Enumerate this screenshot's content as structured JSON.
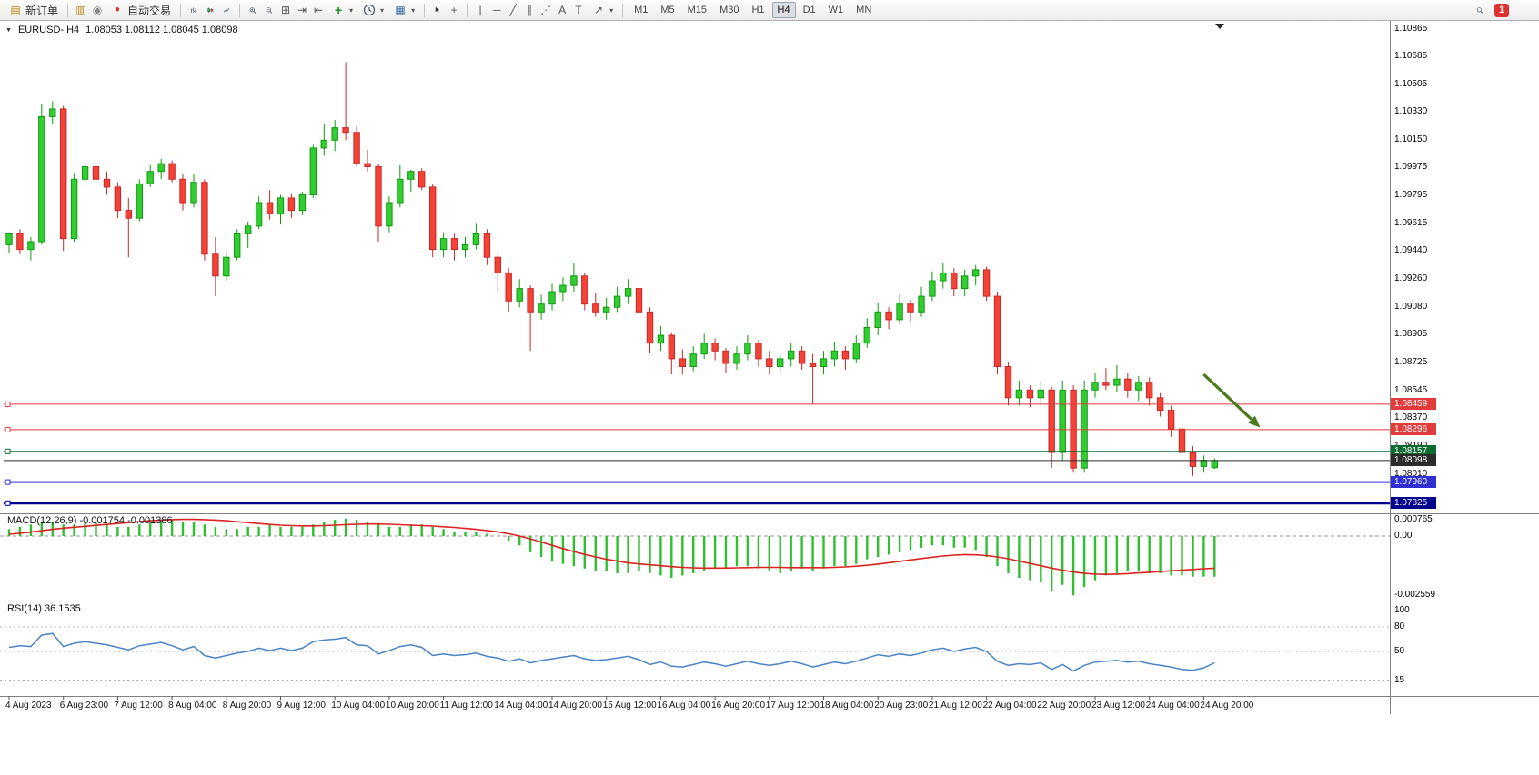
{
  "toolbar": {
    "new_order_label": "新订单",
    "auto_trading_label": "自动交易",
    "timeframes": [
      "M1",
      "M5",
      "M15",
      "M30",
      "H1",
      "H4",
      "D1",
      "W1",
      "MN"
    ],
    "active_timeframe": "H4",
    "notification_count": "1",
    "icons": {
      "caret": "▾",
      "new_order": "▤",
      "market_watch": "▥",
      "navigator": "◉",
      "auto_trading_dot": "●",
      "tile_windows": "⊞",
      "auto_scroll": "⇥",
      "chart_shift": "⇤",
      "indicators_plus": "+",
      "templates": "▦",
      "crosshair": "+",
      "vertical_line": "|",
      "horizontal_line": "─",
      "trendline": "╱",
      "channel": "∥",
      "fibonacci": "⋰",
      "text": "A",
      "text_label": "T",
      "arrows": "↗"
    }
  },
  "chart": {
    "header": {
      "collapse_marker": "▼",
      "symbol_label": "EURUSD-,H4",
      "ohlc_label": "1.08053 1.08112 1.08045 1.08098"
    }
  },
  "chart_data": {
    "type": "candlestick",
    "symbol": "EURUSD",
    "timeframe": "H4",
    "price_range": {
      "max": 1.1092,
      "min": 1.0776
    },
    "price_axis_labels": [
      "1.10865",
      "1.10685",
      "1.10505",
      "1.10330",
      "1.10150",
      "1.09975",
      "1.09795",
      "1.09615",
      "1.09440",
      "1.09260",
      "1.09080",
      "1.08905",
      "1.08725",
      "1.08545",
      "1.08370",
      "1.08190",
      "1.08010"
    ],
    "time_labels": [
      "4 Aug 2023",
      "6 Aug 23:00",
      "7 Aug 12:00",
      "8 Aug 04:00",
      "8 Aug 20:00",
      "9 Aug 12:00",
      "10 Aug 04:00",
      "10 Aug 20:00",
      "11 Aug 12:00",
      "14 Aug 04:00",
      "14 Aug 20:00",
      "15 Aug 12:00",
      "16 Aug 04:00",
      "16 Aug 20:00",
      "17 Aug 12:00",
      "18 Aug 04:00",
      "20 Aug 23:00",
      "21 Aug 12:00",
      "22 Aug 04:00",
      "22 Aug 20:00",
      "23 Aug 12:00",
      "24 Aug 04:00",
      "24 Aug 20:00"
    ],
    "colors": {
      "up": "#33cc33",
      "up_border": "#0e9c0e",
      "down": "#f44336",
      "down_border": "#c62828",
      "macd_hist": "#2fbf2f",
      "macd_signal": "#dd2222",
      "rsi_line": "#4a84c4",
      "arrow": "#4e7a1f"
    },
    "candles": [
      [
        1.0948,
        1.0956,
        1.0943,
        1.0955
      ],
      [
        1.0955,
        1.0958,
        1.0942,
        1.0945
      ],
      [
        1.0945,
        1.0953,
        1.0938,
        1.095
      ],
      [
        1.095,
        1.1038,
        1.0948,
        1.103
      ],
      [
        1.103,
        1.104,
        1.1025,
        1.1035
      ],
      [
        1.1035,
        1.1037,
        1.0944,
        1.0952
      ],
      [
        1.0952,
        1.0994,
        1.095,
        1.099
      ],
      [
        1.099,
        1.1001,
        1.0985,
        1.0998
      ],
      [
        1.0998,
        1.1,
        1.0988,
        1.099
      ],
      [
        1.099,
        1.0995,
        1.098,
        1.0985
      ],
      [
        1.0985,
        1.0988,
        1.0965,
        1.097
      ],
      [
        1.097,
        1.0978,
        1.094,
        1.0965
      ],
      [
        1.0965,
        1.099,
        1.0963,
        1.0987
      ],
      [
        1.0987,
        1.0999,
        1.0985,
        1.0995
      ],
      [
        1.0995,
        1.1003,
        1.099,
        1.1
      ],
      [
        1.1,
        1.1002,
        1.0988,
        1.099
      ],
      [
        1.099,
        1.0993,
        1.097,
        1.0975
      ],
      [
        1.0975,
        1.0993,
        1.0972,
        1.0988
      ],
      [
        1.0988,
        1.099,
        1.0938,
        1.0942
      ],
      [
        1.0942,
        1.0953,
        1.0915,
        1.0928
      ],
      [
        1.0928,
        1.0944,
        1.0925,
        1.094
      ],
      [
        1.094,
        1.0958,
        1.0938,
        1.0955
      ],
      [
        1.0955,
        1.0963,
        1.0946,
        1.096
      ],
      [
        1.096,
        1.0979,
        1.0958,
        1.0975
      ],
      [
        1.0975,
        1.0983,
        1.0964,
        1.0968
      ],
      [
        1.0968,
        1.098,
        1.0961,
        1.0978
      ],
      [
        1.0978,
        1.0981,
        1.0965,
        1.097
      ],
      [
        1.097,
        1.0982,
        1.0967,
        1.098
      ],
      [
        1.098,
        1.1012,
        1.0978,
        1.101
      ],
      [
        1.101,
        1.1025,
        1.1005,
        1.1015
      ],
      [
        1.1015,
        1.1028,
        1.1008,
        1.1023
      ],
      [
        1.1023,
        1.1065,
        1.1015,
        1.102
      ],
      [
        1.102,
        1.1024,
        1.0998,
        1.1
      ],
      [
        1.1,
        1.1009,
        1.0995,
        1.0998
      ],
      [
        1.0998,
        1.1,
        1.095,
        1.096
      ],
      [
        1.096,
        1.0979,
        1.0956,
        1.0975
      ],
      [
        1.0975,
        1.0999,
        1.0972,
        1.099
      ],
      [
        1.099,
        1.0996,
        1.0982,
        1.0995
      ],
      [
        1.0995,
        1.0997,
        1.0983,
        1.0985
      ],
      [
        1.0985,
        1.0987,
        1.094,
        1.0945
      ],
      [
        1.0945,
        1.0956,
        1.094,
        1.0952
      ],
      [
        1.0952,
        1.0955,
        1.0938,
        1.0945
      ],
      [
        1.0945,
        1.0953,
        1.094,
        1.0948
      ],
      [
        1.0948,
        1.0962,
        1.0945,
        1.0955
      ],
      [
        1.0955,
        1.0958,
        1.0935,
        1.094
      ],
      [
        1.094,
        1.0942,
        1.0918,
        1.093
      ],
      [
        1.093,
        1.0933,
        1.0905,
        1.0912
      ],
      [
        1.0912,
        1.0926,
        1.0908,
        1.092
      ],
      [
        1.092,
        1.0922,
        1.088,
        1.0905
      ],
      [
        1.0905,
        1.0916,
        1.09,
        1.091
      ],
      [
        1.091,
        1.0923,
        1.0906,
        1.0918
      ],
      [
        1.0918,
        1.0927,
        1.0912,
        1.0922
      ],
      [
        1.0922,
        1.0936,
        1.0918,
        1.0928
      ],
      [
        1.0928,
        1.093,
        1.0906,
        1.091
      ],
      [
        1.091,
        1.0917,
        1.0902,
        1.0905
      ],
      [
        1.0905,
        1.0914,
        1.09,
        1.0908
      ],
      [
        1.0908,
        1.0921,
        1.0905,
        1.0915
      ],
      [
        1.0915,
        1.0926,
        1.091,
        1.092
      ],
      [
        1.092,
        1.0922,
        1.09,
        1.0905
      ],
      [
        1.0905,
        1.0908,
        1.0879,
        1.0885
      ],
      [
        1.0885,
        1.0896,
        1.088,
        1.089
      ],
      [
        1.089,
        1.0892,
        1.0865,
        1.0875
      ],
      [
        1.0875,
        1.0881,
        1.0865,
        1.087
      ],
      [
        1.087,
        1.0883,
        1.0867,
        1.0878
      ],
      [
        1.0878,
        1.0891,
        1.0875,
        1.0885
      ],
      [
        1.0885,
        1.0888,
        1.0874,
        1.088
      ],
      [
        1.088,
        1.0882,
        1.0866,
        1.0872
      ],
      [
        1.0872,
        1.0883,
        1.0868,
        1.0878
      ],
      [
        1.0878,
        1.089,
        1.0874,
        1.0885
      ],
      [
        1.0885,
        1.0887,
        1.087,
        1.0875
      ],
      [
        1.0875,
        1.088,
        1.0865,
        1.087
      ],
      [
        1.087,
        1.0878,
        1.0865,
        1.0875
      ],
      [
        1.0875,
        1.0885,
        1.087,
        1.088
      ],
      [
        1.088,
        1.0883,
        1.0868,
        1.0872
      ],
      [
        1.0872,
        1.0878,
        1.0846,
        1.087
      ],
      [
        1.087,
        1.088,
        1.0865,
        1.0875
      ],
      [
        1.0875,
        1.0886,
        1.087,
        1.088
      ],
      [
        1.088,
        1.0883,
        1.0868,
        1.0875
      ],
      [
        1.0875,
        1.089,
        1.0872,
        1.0885
      ],
      [
        1.0885,
        1.0901,
        1.0882,
        1.0895
      ],
      [
        1.0895,
        1.0911,
        1.089,
        1.0905
      ],
      [
        1.0905,
        1.0908,
        1.0894,
        1.09
      ],
      [
        1.09,
        1.0916,
        1.0897,
        1.091
      ],
      [
        1.091,
        1.0913,
        1.0899,
        1.0905
      ],
      [
        1.0905,
        1.0921,
        1.0902,
        1.0915
      ],
      [
        1.0915,
        1.0931,
        1.0912,
        1.0925
      ],
      [
        1.0925,
        1.0936,
        1.092,
        1.093
      ],
      [
        1.093,
        1.0933,
        1.0915,
        1.092
      ],
      [
        1.092,
        1.0932,
        1.0915,
        1.0928
      ],
      [
        1.0928,
        1.0935,
        1.0922,
        1.0932
      ],
      [
        1.0932,
        1.0934,
        1.0912,
        1.0915
      ],
      [
        1.0915,
        1.0918,
        1.0865,
        1.087
      ],
      [
        1.087,
        1.0873,
        1.0845,
        1.085
      ],
      [
        1.085,
        1.0861,
        1.0845,
        1.0855
      ],
      [
        1.0855,
        1.0858,
        1.0844,
        1.085
      ],
      [
        1.085,
        1.0861,
        1.0845,
        1.0855
      ],
      [
        1.0855,
        1.0857,
        1.0805,
        1.0815
      ],
      [
        1.0815,
        1.0861,
        1.081,
        1.0855
      ],
      [
        1.0855,
        1.0858,
        1.0802,
        1.0805
      ],
      [
        1.0805,
        1.0861,
        1.0802,
        1.0855
      ],
      [
        1.0855,
        1.0866,
        1.085,
        1.086
      ],
      [
        1.086,
        1.0869,
        1.0855,
        1.0858
      ],
      [
        1.0858,
        1.0871,
        1.0854,
        1.0862
      ],
      [
        1.0862,
        1.0866,
        1.085,
        1.0855
      ],
      [
        1.0855,
        1.0864,
        1.0848,
        1.086
      ],
      [
        1.086,
        1.0863,
        1.0845,
        1.085
      ],
      [
        1.085,
        1.0853,
        1.0838,
        1.0842
      ],
      [
        1.0842,
        1.0845,
        1.0825,
        1.083
      ],
      [
        1.083,
        1.0833,
        1.081,
        1.0815
      ],
      [
        1.0815,
        1.0819,
        1.08,
        1.0806
      ],
      [
        1.0806,
        1.0813,
        1.0802,
        1.081
      ],
      [
        1.08053,
        1.08112,
        1.08045,
        1.08098
      ]
    ],
    "price_lines": [
      {
        "price": 1.08459,
        "label": "1.08459",
        "color": "#e23b3b",
        "width": 1
      },
      {
        "price": 1.08296,
        "label": "1.08296",
        "color": "#e23b3b",
        "width": 1
      },
      {
        "price": 1.08157,
        "label": "1.08157",
        "color": "#0d6b2f",
        "width": 1
      },
      {
        "price": 1.08098,
        "label": "1.08098",
        "color": "#2b2b2b",
        "width": 1,
        "current": true
      },
      {
        "price": 1.0796,
        "label": "1.07960",
        "color": "#2f2fd3",
        "width": 2
      },
      {
        "price": 1.07825,
        "label": "1.07825",
        "color": "#00008b",
        "width": 3
      }
    ],
    "annotations": [
      {
        "type": "arrow",
        "from_bar": 110.0,
        "from_price": 1.0865,
        "to_bar": 115.2,
        "to_price": 1.0831
      }
    ],
    "macd": {
      "label": "MACD(12,26,9) -0.001754 -0.001386",
      "axis_labels": [
        "0.000765",
        "0.00",
        "-0.002559"
      ],
      "axis_values": [
        0.000765,
        0,
        -0.002559
      ],
      "range": {
        "max": 0.0009,
        "min": -0.0027
      },
      "histogram": [
        0.0003,
        0.0004,
        0.0005,
        0.0006,
        0.0006,
        0.0005,
        0.0005,
        0.0006,
        0.0006,
        0.0005,
        0.0004,
        0.0004,
        0.0005,
        0.0006,
        0.0007,
        0.0007,
        0.0006,
        0.0006,
        0.0005,
        0.0004,
        0.0003,
        0.0003,
        0.0004,
        0.0004,
        0.0005,
        0.0004,
        0.0004,
        0.0004,
        0.0005,
        0.0006,
        0.0007,
        0.00075,
        0.0007,
        0.0006,
        0.0005,
        0.0004,
        0.0004,
        0.0005,
        0.0005,
        0.0004,
        0.0003,
        0.0002,
        0.0002,
        0.0002,
        0.0001,
        0,
        -0.0002,
        -0.0004,
        -0.0007,
        -0.0009,
        -0.0011,
        -0.0012,
        -0.0013,
        -0.0014,
        -0.0015,
        -0.0015,
        -0.0016,
        -0.0016,
        -0.0015,
        -0.0016,
        -0.0017,
        -0.0018,
        -0.0017,
        -0.0016,
        -0.0015,
        -0.0014,
        -0.0014,
        -0.0013,
        -0.0013,
        -0.0014,
        -0.0015,
        -0.0016,
        -0.0015,
        -0.0014,
        -0.0015,
        -0.0014,
        -0.0013,
        -0.0013,
        -0.0012,
        -0.001,
        -0.0009,
        -0.0008,
        -0.0007,
        -0.0006,
        -0.0005,
        -0.0004,
        -0.0004,
        -0.0005,
        -0.0005,
        -0.0006,
        -0.0009,
        -0.0013,
        -0.0016,
        -0.0018,
        -0.0019,
        -0.002,
        -0.0024,
        -0.0021,
        -0.00255,
        -0.0022,
        -0.0019,
        -0.0017,
        -0.0016,
        -0.0015,
        -0.0015,
        -0.0016,
        -0.0016,
        -0.0017,
        -0.0017,
        -0.00175,
        -0.00175,
        -0.001754
      ],
      "signal": [
        8e-05,
        0.00012,
        0.00017,
        0.00023,
        0.00029,
        0.00034,
        0.00038,
        0.00042,
        0.00046,
        0.0005,
        0.00054,
        0.00058,
        0.00062,
        0.00066,
        0.00069,
        0.00071,
        0.00072,
        0.00072,
        0.00071,
        0.00069,
        0.00066,
        0.00062,
        0.00058,
        0.00054,
        0.0005,
        0.00047,
        0.00045,
        0.00044,
        0.00044,
        0.00045,
        0.00047,
        0.00049,
        0.00051,
        0.00052,
        0.00052,
        0.00051,
        0.00049,
        0.00047,
        0.00045,
        0.00043,
        0.0004,
        0.00037,
        0.00033,
        0.00029,
        0.00024,
        0.00018,
        0.0001,
        0,
        -0.00012,
        -0.00026,
        -0.0004,
        -0.00054,
        -0.00067,
        -0.00079,
        -0.0009,
        -0.001,
        -0.00108,
        -0.00115,
        -0.0012,
        -0.00124,
        -0.00128,
        -0.00132,
        -0.00135,
        -0.00137,
        -0.00138,
        -0.00138,
        -0.00138,
        -0.00137,
        -0.00136,
        -0.00135,
        -0.00135,
        -0.00135,
        -0.00136,
        -0.00136,
        -0.00136,
        -0.00136,
        -0.00135,
        -0.00133,
        -0.0013,
        -0.00126,
        -0.00121,
        -0.00115,
        -0.00109,
        -0.00103,
        -0.00097,
        -0.00091,
        -0.00086,
        -0.00082,
        -0.0008,
        -0.00081,
        -0.00084,
        -0.0009,
        -0.00098,
        -0.00108,
        -0.00118,
        -0.00128,
        -0.00138,
        -0.00147,
        -0.00155,
        -0.00161,
        -0.00164,
        -0.00165,
        -0.00164,
        -0.00162,
        -0.00159,
        -0.00156,
        -0.00153,
        -0.0015,
        -0.00147,
        -0.00144,
        -0.00141,
        -0.001386
      ]
    },
    "rsi": {
      "label": "RSI(14) 36.1535",
      "axis_labels": [
        "100",
        "80",
        "50",
        "15"
      ],
      "axis_values": [
        100,
        80,
        50,
        15
      ],
      "levels": [
        80,
        50,
        15
      ],
      "range": {
        "max": 100,
        "min": 0
      },
      "values": [
        55,
        57,
        56,
        70,
        72,
        56,
        60,
        62,
        60,
        58,
        55,
        52,
        57,
        59,
        61,
        57,
        52,
        56,
        45,
        42,
        45,
        48,
        50,
        54,
        51,
        54,
        51,
        54,
        62,
        64,
        65,
        67,
        58,
        57,
        47,
        51,
        56,
        58,
        55,
        45,
        47,
        45,
        46,
        48,
        44,
        42,
        38,
        41,
        36,
        39,
        41,
        43,
        45,
        41,
        39,
        40,
        42,
        44,
        40,
        34,
        37,
        32,
        31,
        34,
        37,
        35,
        32,
        35,
        38,
        35,
        33,
        35,
        38,
        35,
        31,
        34,
        37,
        35,
        38,
        42,
        46,
        44,
        47,
        45,
        48,
        52,
        54,
        50,
        53,
        55,
        50,
        38,
        33,
        35,
        34,
        36,
        28,
        34,
        26,
        33,
        37,
        38,
        39,
        37,
        38,
        35,
        33,
        31,
        28,
        27,
        30,
        36.15
      ]
    }
  }
}
